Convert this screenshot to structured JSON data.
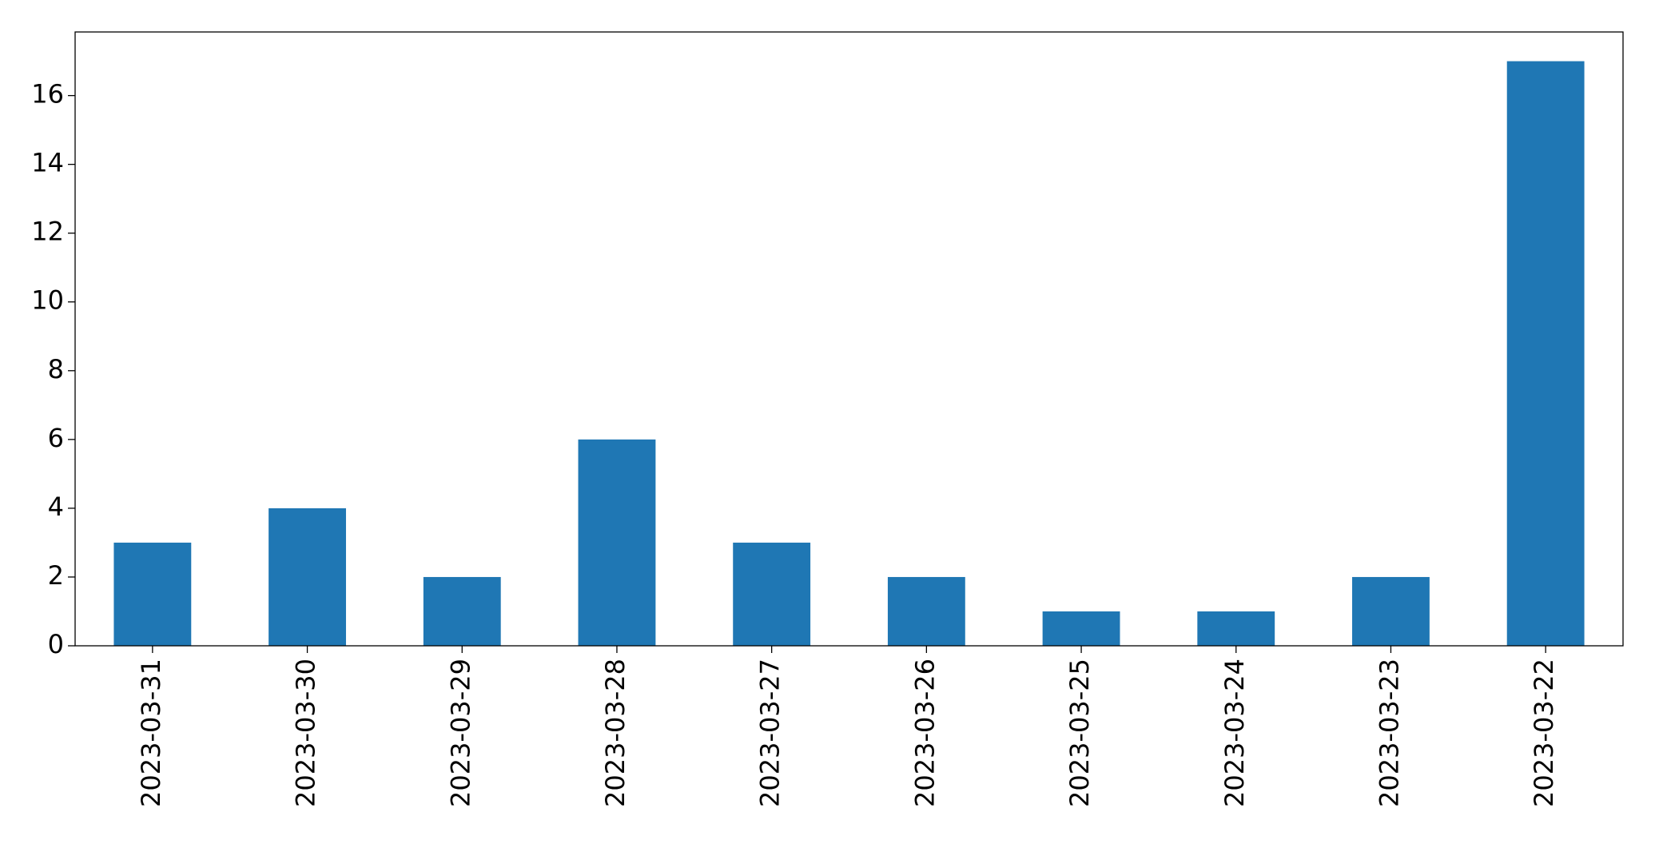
{
  "chart_data": {
    "type": "bar",
    "categories": [
      "2023-03-31",
      "2023-03-30",
      "2023-03-29",
      "2023-03-28",
      "2023-03-27",
      "2023-03-26",
      "2023-03-25",
      "2023-03-24",
      "2023-03-23",
      "2023-03-22"
    ],
    "values": [
      3,
      4,
      2,
      6,
      3,
      2,
      1,
      1,
      2,
      17
    ],
    "color": "#1f77b4",
    "ylim": [
      0,
      17.85
    ],
    "yticks": [
      0,
      2,
      4,
      6,
      8,
      10,
      12,
      14,
      16
    ],
    "grid": false
  }
}
